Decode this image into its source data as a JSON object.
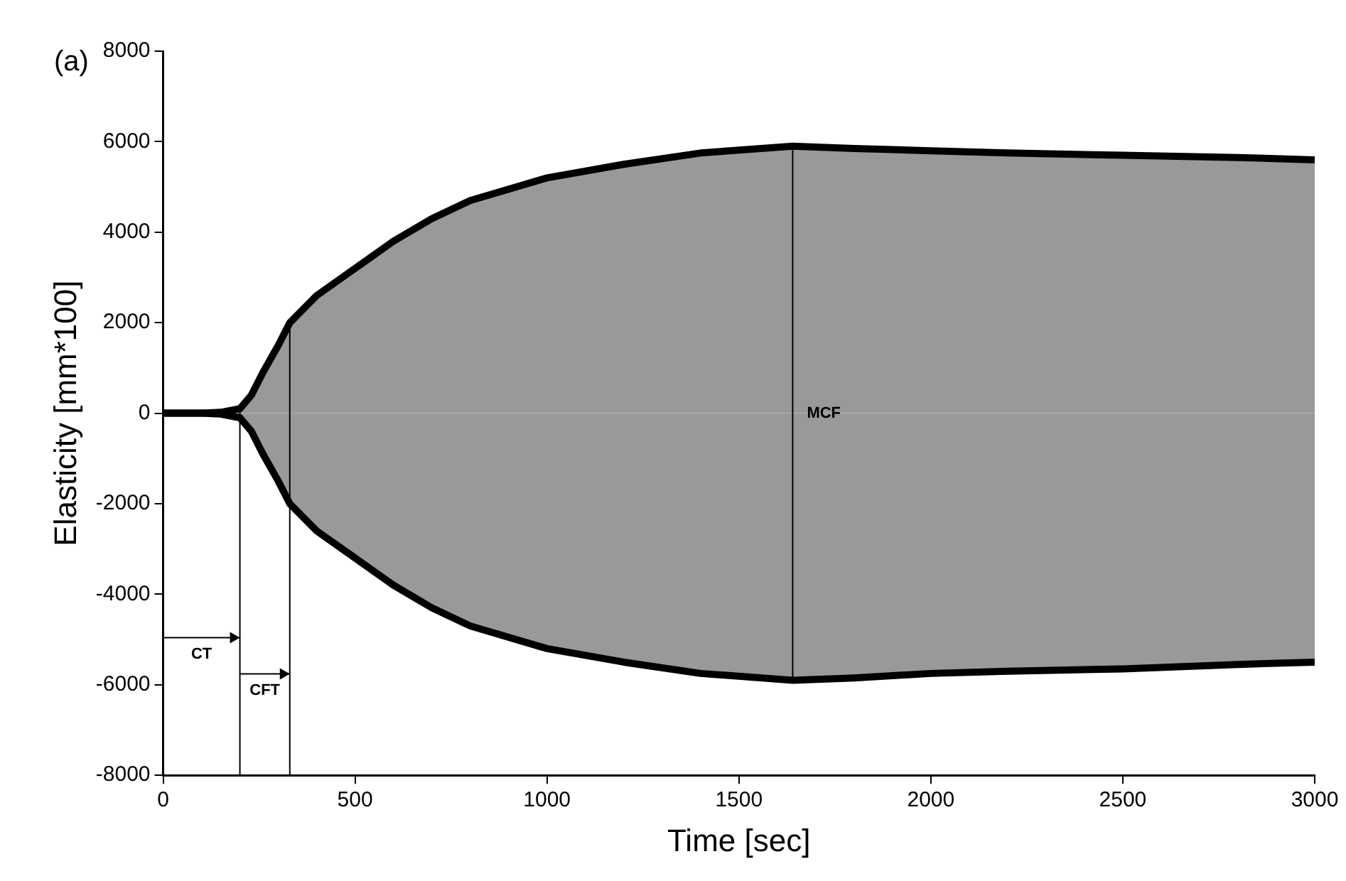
{
  "chart_data": {
    "type": "area",
    "xlabel": "Time [sec]",
    "ylabel": "Elasticity [mm*100]",
    "annotations": [
      "(a)"
    ],
    "xlim": [
      0,
      3000
    ],
    "xticks": [
      0,
      500,
      1000,
      1500,
      2000,
      2500,
      3000
    ],
    "ylim": [
      -8000,
      8000
    ],
    "yticks": [
      -8000,
      -6000,
      -4000,
      -2000,
      0,
      2000,
      4000,
      6000,
      8000
    ],
    "grid": false,
    "legend": false,
    "x": [
      0,
      100,
      150,
      200,
      230,
      260,
      300,
      330,
      400,
      500,
      600,
      700,
      800,
      1000,
      1200,
      1400,
      1640,
      1800,
      2000,
      2200,
      2500,
      2800,
      3000
    ],
    "series": [
      {
        "color": "#999999",
        "values": [
          0,
          0,
          20,
          100,
          400,
          900,
          1500,
          2000,
          2600,
          3200,
          3800,
          4300,
          4700,
          5200,
          5500,
          5750,
          5900,
          5850,
          5800,
          5750,
          5700,
          5650,
          5600
        ]
      },
      {
        "color": "#999999",
        "values": [
          0,
          0,
          -20,
          -100,
          -400,
          -900,
          -1500,
          -2000,
          -2600,
          -3200,
          -3800,
          -4300,
          -4700,
          -5200,
          -5500,
          -5750,
          -5900,
          -5850,
          -5750,
          -5700,
          -5650,
          -5550,
          -5500
        ]
      }
    ],
    "ref_lines": [
      {
        "axis": "x",
        "value": 200,
        "label": "CT"
      },
      {
        "axis": "x",
        "value": 330,
        "label": "CFT"
      },
      {
        "axis": "x",
        "value": 1640,
        "label": "MCF"
      }
    ]
  }
}
